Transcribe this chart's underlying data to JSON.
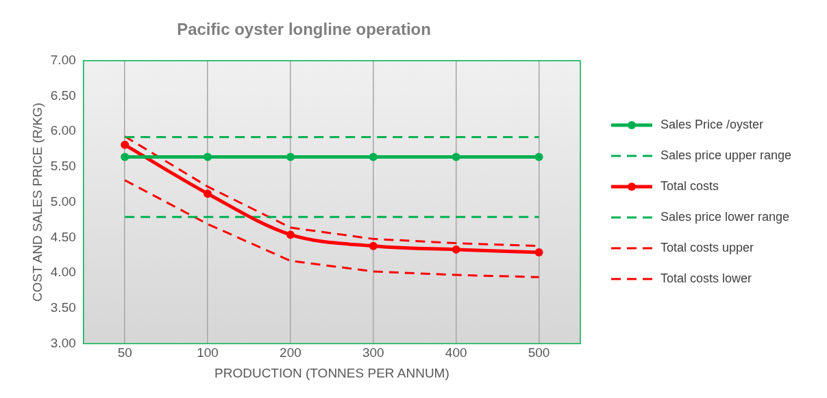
{
  "chart_data": {
    "type": "line",
    "title": "Pacific oyster longline operation",
    "xlabel": "PRODUCTION (TONNES PER ANNUM)",
    "ylabel": "COST AND SALES PRICE (R/KG)",
    "categories": [
      "50",
      "100",
      "200",
      "300",
      "400",
      "500"
    ],
    "series": [
      {
        "name": "Sales Price /oyster",
        "color": "#00b050",
        "marker": "circle",
        "line_style": "solid",
        "values": [
          5.64,
          5.64,
          5.64,
          5.64,
          5.64,
          5.64
        ]
      },
      {
        "name": "Sales price upper range",
        "color": "#00b050",
        "marker": "none",
        "line_style": "dashed",
        "values": [
          5.92,
          5.92,
          5.92,
          5.92,
          5.92,
          5.92
        ]
      },
      {
        "name": "Total costs",
        "color": "#ff0000",
        "marker": "circle",
        "line_style": "solid",
        "values": [
          5.81,
          5.12,
          4.54,
          4.38,
          4.33,
          4.29
        ]
      },
      {
        "name": "Sales price lower range",
        "color": "#00b050",
        "marker": "none",
        "line_style": "dashed",
        "values": [
          4.79,
          4.79,
          4.79,
          4.79,
          4.79,
          4.79
        ]
      },
      {
        "name": "Total costs upper",
        "color": "#ff0000",
        "marker": "none",
        "line_style": "dashed",
        "values": [
          5.93,
          5.22,
          4.64,
          4.48,
          4.42,
          4.38
        ]
      },
      {
        "name": "Total costs lower",
        "color": "#ff0000",
        "marker": "none",
        "line_style": "dashed",
        "values": [
          5.31,
          4.69,
          4.17,
          4.02,
          3.97,
          3.94
        ]
      }
    ],
    "ylim": [
      3,
      7
    ],
    "yticks": [
      {
        "value": 3,
        "label": "3.00"
      },
      {
        "value": 3.5,
        "label": "3.50"
      },
      {
        "value": 4,
        "label": "4.00"
      },
      {
        "value": 4.5,
        "label": "4.50"
      },
      {
        "value": 5,
        "label": "5.00"
      },
      {
        "value": 5.5,
        "label": "5.50"
      },
      {
        "value": 6,
        "label": "6.00"
      },
      {
        "value": 6.5,
        "label": "6.50"
      },
      {
        "value": 7,
        "label": "7.00"
      }
    ],
    "grid": "x",
    "legend": "right"
  }
}
